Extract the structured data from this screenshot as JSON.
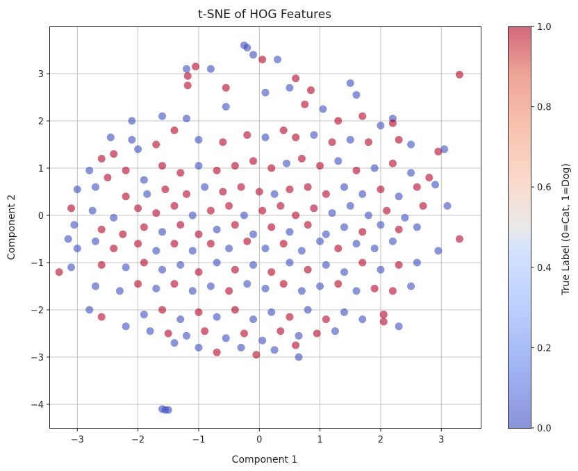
{
  "chart_data": {
    "type": "scatter",
    "title": "t-SNE of HOG Features",
    "xlabel": "Component 1",
    "ylabel": "Component 2",
    "xlim": [
      -3.45,
      3.65
    ],
    "ylim": [
      -4.5,
      4.0
    ],
    "xticks": [
      -3,
      -2,
      -1,
      0,
      1,
      2,
      3
    ],
    "xtick_labels": [
      "−3",
      "−2",
      "−1",
      "0",
      "1",
      "2",
      "3"
    ],
    "yticks": [
      -4,
      -3,
      -2,
      -1,
      0,
      1,
      2,
      3
    ],
    "ytick_labels": [
      "−4",
      "−3",
      "−2",
      "−1",
      "0",
      "1",
      "2",
      "3"
    ],
    "grid": true,
    "colorbar": {
      "label": "True Label (0=Cat, 1=Dog)",
      "range": [
        0.0,
        1.0
      ],
      "ticks": [
        0.0,
        0.2,
        0.4,
        0.6,
        0.8,
        1.0
      ],
      "tick_labels": [
        "0.0",
        "0.2",
        "0.4",
        "0.6",
        "0.8",
        "1.0"
      ],
      "colormap": "coolwarm",
      "low_color": "#3b4cc0",
      "high_color": "#b40426"
    },
    "marker_alpha": 0.6,
    "points": [
      {
        "x": -0.25,
        "y": 3.6,
        "label": 0
      },
      {
        "x": -0.2,
        "y": 3.55,
        "label": 0
      },
      {
        "x": -0.1,
        "y": 3.4,
        "label": 0
      },
      {
        "x": 0.05,
        "y": 3.3,
        "label": 1
      },
      {
        "x": 0.3,
        "y": 3.3,
        "label": 0
      },
      {
        "x": -1.05,
        "y": 3.15,
        "label": 1
      },
      {
        "x": -1.2,
        "y": 3.1,
        "label": 0
      },
      {
        "x": -0.8,
        "y": 3.1,
        "label": 0
      },
      {
        "x": -1.18,
        "y": 2.95,
        "label": 1
      },
      {
        "x": -1.18,
        "y": 2.75,
        "label": 1
      },
      {
        "x": 3.3,
        "y": 2.98,
        "label": 1
      },
      {
        "x": -0.55,
        "y": 2.7,
        "label": 1
      },
      {
        "x": 0.6,
        "y": 2.9,
        "label": 1
      },
      {
        "x": 0.85,
        "y": 2.65,
        "label": 1
      },
      {
        "x": 1.5,
        "y": 2.8,
        "label": 0
      },
      {
        "x": 1.6,
        "y": 2.55,
        "label": 0
      },
      {
        "x": -2.1,
        "y": 2.0,
        "label": 0
      },
      {
        "x": -1.6,
        "y": 2.1,
        "label": 0
      },
      {
        "x": -1.2,
        "y": 2.05,
        "label": 0
      },
      {
        "x": -0.55,
        "y": 2.3,
        "label": 0
      },
      {
        "x": 0.1,
        "y": 2.6,
        "label": 0
      },
      {
        "x": 0.5,
        "y": 2.7,
        "label": 0
      },
      {
        "x": 0.75,
        "y": 2.35,
        "label": 1
      },
      {
        "x": 1.05,
        "y": 2.25,
        "label": 0
      },
      {
        "x": 1.3,
        "y": 2.0,
        "label": 1
      },
      {
        "x": 1.7,
        "y": 2.1,
        "label": 1
      },
      {
        "x": 2.2,
        "y": 2.05,
        "label": 0
      },
      {
        "x": 2.2,
        "y": 1.95,
        "label": 1
      },
      {
        "x": 2.0,
        "y": 1.9,
        "label": 0
      },
      {
        "x": -2.45,
        "y": 1.65,
        "label": 0
      },
      {
        "x": -2.1,
        "y": 1.6,
        "label": 0
      },
      {
        "x": -2.6,
        "y": 1.2,
        "label": 1
      },
      {
        "x": -2.4,
        "y": 1.3,
        "label": 1
      },
      {
        "x": -2.0,
        "y": 1.4,
        "label": 0
      },
      {
        "x": -1.7,
        "y": 1.5,
        "label": 1
      },
      {
        "x": -1.4,
        "y": 1.8,
        "label": 1
      },
      {
        "x": -1.0,
        "y": 1.6,
        "label": 0
      },
      {
        "x": -0.6,
        "y": 1.55,
        "label": 1
      },
      {
        "x": -0.2,
        "y": 1.7,
        "label": 1
      },
      {
        "x": 0.1,
        "y": 1.65,
        "label": 0
      },
      {
        "x": 0.4,
        "y": 1.8,
        "label": 1
      },
      {
        "x": 0.6,
        "y": 1.65,
        "label": 1
      },
      {
        "x": 0.9,
        "y": 1.7,
        "label": 0
      },
      {
        "x": 1.2,
        "y": 1.55,
        "label": 1
      },
      {
        "x": 1.5,
        "y": 1.6,
        "label": 0
      },
      {
        "x": 1.8,
        "y": 1.55,
        "label": 1
      },
      {
        "x": 2.3,
        "y": 1.6,
        "label": 1
      },
      {
        "x": 2.5,
        "y": 1.5,
        "label": 0
      },
      {
        "x": 2.95,
        "y": 1.35,
        "label": 1
      },
      {
        "x": 3.05,
        "y": 1.4,
        "label": 0
      },
      {
        "x": -2.8,
        "y": 0.95,
        "label": 0
      },
      {
        "x": -2.5,
        "y": 0.8,
        "label": 1
      },
      {
        "x": -2.2,
        "y": 0.95,
        "label": 1
      },
      {
        "x": -1.9,
        "y": 0.75,
        "label": 0
      },
      {
        "x": -1.6,
        "y": 1.05,
        "label": 1
      },
      {
        "x": -1.3,
        "y": 0.9,
        "label": 1
      },
      {
        "x": -1.0,
        "y": 1.05,
        "label": 0
      },
      {
        "x": -0.7,
        "y": 0.95,
        "label": 1
      },
      {
        "x": -0.4,
        "y": 1.05,
        "label": 1
      },
      {
        "x": -0.1,
        "y": 1.15,
        "label": 1
      },
      {
        "x": 0.2,
        "y": 1.0,
        "label": 1
      },
      {
        "x": 0.45,
        "y": 1.1,
        "label": 0
      },
      {
        "x": 0.7,
        "y": 1.2,
        "label": 1
      },
      {
        "x": 1.0,
        "y": 1.05,
        "label": 1
      },
      {
        "x": 1.3,
        "y": 1.15,
        "label": 0
      },
      {
        "x": 1.6,
        "y": 0.95,
        "label": 1
      },
      {
        "x": 1.9,
        "y": 1.0,
        "label": 0
      },
      {
        "x": 2.2,
        "y": 1.1,
        "label": 1
      },
      {
        "x": 2.5,
        "y": 0.9,
        "label": 0
      },
      {
        "x": 2.8,
        "y": 0.8,
        "label": 1
      },
      {
        "x": -3.0,
        "y": 0.55,
        "label": 0
      },
      {
        "x": -2.7,
        "y": 0.6,
        "label": 0
      },
      {
        "x": -2.2,
        "y": 0.4,
        "label": 1
      },
      {
        "x": -1.85,
        "y": 0.45,
        "label": 0
      },
      {
        "x": -1.55,
        "y": 0.55,
        "label": 1
      },
      {
        "x": -1.2,
        "y": 0.45,
        "label": 1
      },
      {
        "x": -0.9,
        "y": 0.6,
        "label": 0
      },
      {
        "x": -0.6,
        "y": 0.5,
        "label": 1
      },
      {
        "x": -0.3,
        "y": 0.6,
        "label": 1
      },
      {
        "x": 0.0,
        "y": 0.5,
        "label": 1
      },
      {
        "x": 0.25,
        "y": 0.45,
        "label": 0
      },
      {
        "x": 0.5,
        "y": 0.55,
        "label": 1
      },
      {
        "x": 0.8,
        "y": 0.6,
        "label": 1
      },
      {
        "x": 1.1,
        "y": 0.45,
        "label": 1
      },
      {
        "x": 1.4,
        "y": 0.6,
        "label": 0
      },
      {
        "x": 1.7,
        "y": 0.45,
        "label": 0
      },
      {
        "x": 2.0,
        "y": 0.55,
        "label": 1
      },
      {
        "x": 2.3,
        "y": 0.4,
        "label": 0
      },
      {
        "x": 2.6,
        "y": 0.6,
        "label": 1
      },
      {
        "x": 2.9,
        "y": 0.65,
        "label": 0
      },
      {
        "x": -3.1,
        "y": 0.15,
        "label": 1
      },
      {
        "x": -2.75,
        "y": 0.1,
        "label": 0
      },
      {
        "x": -2.4,
        "y": -0.05,
        "label": 0
      },
      {
        "x": -2.0,
        "y": 0.15,
        "label": 1
      },
      {
        "x": -1.7,
        "y": 0.05,
        "label": 1
      },
      {
        "x": -1.4,
        "y": 0.2,
        "label": 1
      },
      {
        "x": -1.1,
        "y": 0.0,
        "label": 0
      },
      {
        "x": -0.8,
        "y": 0.1,
        "label": 1
      },
      {
        "x": -0.5,
        "y": 0.2,
        "label": 1
      },
      {
        "x": -0.25,
        "y": 0.0,
        "label": 0
      },
      {
        "x": 0.05,
        "y": 0.1,
        "label": 1
      },
      {
        "x": 0.35,
        "y": 0.2,
        "label": 1
      },
      {
        "x": 0.6,
        "y": 0.0,
        "label": 1
      },
      {
        "x": 0.9,
        "y": 0.15,
        "label": 1
      },
      {
        "x": 1.2,
        "y": 0.05,
        "label": 0
      },
      {
        "x": 1.5,
        "y": 0.2,
        "label": 0
      },
      {
        "x": 1.8,
        "y": 0.0,
        "label": 0
      },
      {
        "x": 2.1,
        "y": 0.1,
        "label": 1
      },
      {
        "x": 2.4,
        "y": -0.05,
        "label": 0
      },
      {
        "x": 2.7,
        "y": 0.2,
        "label": 1
      },
      {
        "x": 3.1,
        "y": 0.2,
        "label": 0
      },
      {
        "x": -3.05,
        "y": -0.2,
        "label": 0
      },
      {
        "x": -2.6,
        "y": -0.3,
        "label": 1
      },
      {
        "x": -2.25,
        "y": -0.4,
        "label": 1
      },
      {
        "x": -1.9,
        "y": -0.25,
        "label": 1
      },
      {
        "x": -1.6,
        "y": -0.35,
        "label": 0
      },
      {
        "x": -1.3,
        "y": -0.2,
        "label": 1
      },
      {
        "x": -1.0,
        "y": -0.4,
        "label": 1
      },
      {
        "x": -0.7,
        "y": -0.3,
        "label": 0
      },
      {
        "x": -0.4,
        "y": -0.2,
        "label": 1
      },
      {
        "x": -0.1,
        "y": -0.4,
        "label": 0
      },
      {
        "x": 0.2,
        "y": -0.25,
        "label": 1
      },
      {
        "x": 0.5,
        "y": -0.35,
        "label": 0
      },
      {
        "x": 0.8,
        "y": -0.2,
        "label": 1
      },
      {
        "x": 1.1,
        "y": -0.4,
        "label": 0
      },
      {
        "x": 1.4,
        "y": -0.25,
        "label": 0
      },
      {
        "x": 1.7,
        "y": -0.35,
        "label": 1
      },
      {
        "x": 2.0,
        "y": -0.2,
        "label": 0
      },
      {
        "x": 2.3,
        "y": -0.3,
        "label": 1
      },
      {
        "x": 2.6,
        "y": -0.25,
        "label": 0
      },
      {
        "x": 3.3,
        "y": -0.5,
        "label": 1
      },
      {
        "x": -3.15,
        "y": -0.5,
        "label": 0
      },
      {
        "x": -3.0,
        "y": -0.7,
        "label": 0
      },
      {
        "x": -2.7,
        "y": -0.55,
        "label": 0
      },
      {
        "x": -2.4,
        "y": -0.7,
        "label": 1
      },
      {
        "x": -2.0,
        "y": -0.6,
        "label": 1
      },
      {
        "x": -1.7,
        "y": -0.75,
        "label": 0
      },
      {
        "x": -1.4,
        "y": -0.6,
        "label": 1
      },
      {
        "x": -1.1,
        "y": -0.75,
        "label": 0
      },
      {
        "x": -0.8,
        "y": -0.6,
        "label": 1
      },
      {
        "x": -0.5,
        "y": -0.7,
        "label": 0
      },
      {
        "x": -0.2,
        "y": -0.55,
        "label": 1
      },
      {
        "x": 0.1,
        "y": -0.7,
        "label": 0
      },
      {
        "x": 0.4,
        "y": -0.6,
        "label": 1
      },
      {
        "x": 0.7,
        "y": -0.75,
        "label": 0
      },
      {
        "x": 1.0,
        "y": -0.55,
        "label": 0
      },
      {
        "x": 1.3,
        "y": -0.7,
        "label": 1
      },
      {
        "x": 1.6,
        "y": -0.6,
        "label": 0
      },
      {
        "x": 1.9,
        "y": -0.7,
        "label": 0
      },
      {
        "x": 2.2,
        "y": -0.55,
        "label": 0
      },
      {
        "x": 2.95,
        "y": -0.75,
        "label": 0
      },
      {
        "x": -3.1,
        "y": -1.1,
        "label": 0
      },
      {
        "x": -3.3,
        "y": -1.2,
        "label": 1
      },
      {
        "x": -2.6,
        "y": -1.05,
        "label": 1
      },
      {
        "x": -2.2,
        "y": -1.1,
        "label": 0
      },
      {
        "x": -1.9,
        "y": -1.0,
        "label": 1
      },
      {
        "x": -1.6,
        "y": -1.15,
        "label": 0
      },
      {
        "x": -1.3,
        "y": -1.05,
        "label": 0
      },
      {
        "x": -1.0,
        "y": -1.2,
        "label": 1
      },
      {
        "x": -0.7,
        "y": -1.0,
        "label": 0
      },
      {
        "x": -0.4,
        "y": -1.15,
        "label": 1
      },
      {
        "x": -0.1,
        "y": -1.05,
        "label": 0
      },
      {
        "x": 0.2,
        "y": -1.2,
        "label": 1
      },
      {
        "x": 0.5,
        "y": -1.0,
        "label": 0
      },
      {
        "x": 0.8,
        "y": -1.15,
        "label": 1
      },
      {
        "x": 1.1,
        "y": -1.05,
        "label": 0
      },
      {
        "x": 1.4,
        "y": -1.2,
        "label": 0
      },
      {
        "x": 1.7,
        "y": -1.0,
        "label": 1
      },
      {
        "x": 2.0,
        "y": -1.15,
        "label": 0
      },
      {
        "x": 2.3,
        "y": -1.05,
        "label": 1
      },
      {
        "x": 2.6,
        "y": -1.0,
        "label": 0
      },
      {
        "x": -2.7,
        "y": -1.5,
        "label": 0
      },
      {
        "x": -2.3,
        "y": -1.6,
        "label": 0
      },
      {
        "x": -2.0,
        "y": -1.45,
        "label": 1
      },
      {
        "x": -1.7,
        "y": -1.55,
        "label": 0
      },
      {
        "x": -1.4,
        "y": -1.45,
        "label": 1
      },
      {
        "x": -1.1,
        "y": -1.6,
        "label": 0
      },
      {
        "x": -0.8,
        "y": -1.5,
        "label": 0
      },
      {
        "x": -0.5,
        "y": -1.6,
        "label": 1
      },
      {
        "x": -0.2,
        "y": -1.45,
        "label": 0
      },
      {
        "x": 0.1,
        "y": -1.55,
        "label": 0
      },
      {
        "x": 0.4,
        "y": -1.45,
        "label": 1
      },
      {
        "x": 0.7,
        "y": -1.6,
        "label": 0
      },
      {
        "x": 1.0,
        "y": -1.5,
        "label": 0
      },
      {
        "x": 1.3,
        "y": -1.45,
        "label": 1
      },
      {
        "x": 1.6,
        "y": -1.6,
        "label": 0
      },
      {
        "x": 1.9,
        "y": -1.55,
        "label": 1
      },
      {
        "x": 2.2,
        "y": -1.6,
        "label": 1
      },
      {
        "x": 2.5,
        "y": -1.5,
        "label": 0
      },
      {
        "x": -2.8,
        "y": -2.0,
        "label": 0
      },
      {
        "x": -2.6,
        "y": -2.15,
        "label": 1
      },
      {
        "x": -2.2,
        "y": -2.35,
        "label": 0
      },
      {
        "x": -1.9,
        "y": -2.1,
        "label": 0
      },
      {
        "x": -1.6,
        "y": -2.0,
        "label": 1
      },
      {
        "x": -1.3,
        "y": -2.2,
        "label": 0
      },
      {
        "x": -1.0,
        "y": -2.05,
        "label": 1
      },
      {
        "x": -0.7,
        "y": -2.15,
        "label": 0
      },
      {
        "x": -0.4,
        "y": -2.0,
        "label": 1
      },
      {
        "x": -0.1,
        "y": -2.2,
        "label": 0
      },
      {
        "x": 0.2,
        "y": -2.05,
        "label": 0
      },
      {
        "x": 0.5,
        "y": -2.15,
        "label": 1
      },
      {
        "x": 0.8,
        "y": -2.0,
        "label": 0
      },
      {
        "x": 1.1,
        "y": -2.2,
        "label": 1
      },
      {
        "x": 1.4,
        "y": -2.05,
        "label": 0
      },
      {
        "x": 1.7,
        "y": -2.2,
        "label": 0
      },
      {
        "x": 2.05,
        "y": -2.1,
        "label": 1
      },
      {
        "x": 2.05,
        "y": -2.25,
        "label": 1
      },
      {
        "x": 2.3,
        "y": -2.35,
        "label": 0
      },
      {
        "x": -1.8,
        "y": -2.45,
        "label": 0
      },
      {
        "x": -1.5,
        "y": -2.5,
        "label": 1
      },
      {
        "x": -1.2,
        "y": -2.55,
        "label": 0
      },
      {
        "x": -0.9,
        "y": -2.45,
        "label": 1
      },
      {
        "x": -0.55,
        "y": -2.6,
        "label": 0
      },
      {
        "x": -0.25,
        "y": -2.5,
        "label": 1
      },
      {
        "x": 0.05,
        "y": -2.65,
        "label": 0
      },
      {
        "x": 0.35,
        "y": -2.45,
        "label": 1
      },
      {
        "x": 0.65,
        "y": -2.55,
        "label": 0
      },
      {
        "x": 0.95,
        "y": -2.5,
        "label": 1
      },
      {
        "x": 1.25,
        "y": -2.45,
        "label": 0
      },
      {
        "x": -1.4,
        "y": -2.7,
        "label": 0
      },
      {
        "x": -1.0,
        "y": -2.8,
        "label": 0
      },
      {
        "x": -0.7,
        "y": -2.9,
        "label": 1
      },
      {
        "x": -0.3,
        "y": -2.8,
        "label": 0
      },
      {
        "x": -0.05,
        "y": -2.95,
        "label": 1
      },
      {
        "x": 0.25,
        "y": -2.85,
        "label": 0
      },
      {
        "x": 0.6,
        "y": -2.75,
        "label": 1
      },
      {
        "x": 0.65,
        "y": -3.0,
        "label": 0
      },
      {
        "x": -1.6,
        "y": -4.1,
        "label": 0
      },
      {
        "x": -1.55,
        "y": -4.12,
        "label": 0
      },
      {
        "x": -1.5,
        "y": -4.12,
        "label": 0
      }
    ]
  }
}
